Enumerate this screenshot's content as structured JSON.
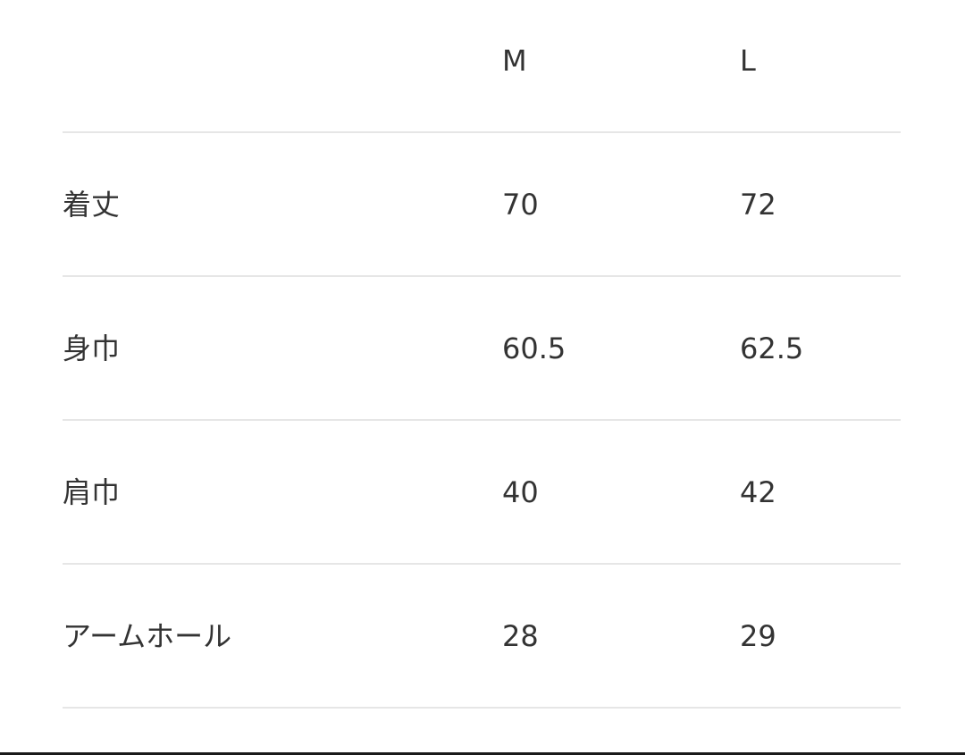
{
  "table": {
    "header": [
      "",
      "M",
      "L"
    ],
    "rows": [
      [
        "着丈",
        "70",
        "72"
      ],
      [
        "身巾",
        "60.5",
        "62.5"
      ],
      [
        "肩巾",
        "40",
        "42"
      ],
      [
        "アームホール",
        "28",
        "29"
      ]
    ]
  }
}
